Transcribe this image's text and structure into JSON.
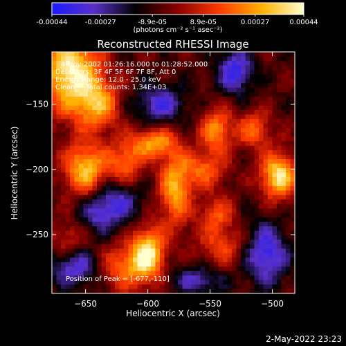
{
  "chart_data": {
    "type": "heatmap",
    "title": "Reconstructed RHESSI Image",
    "colorbar": {
      "ticks": [
        "-0.00044",
        "-0.00027",
        "-8.9e-05",
        "8.9e-05",
        "0.00027",
        "0.00044"
      ],
      "unit_label": "(photons cm⁻² s⁻¹ asec⁻²)",
      "range": [
        -0.00044,
        0.00044
      ],
      "colors": [
        "#1a1aff",
        "#5a30c8",
        "#000000",
        "#8a0000",
        "#ff3c00",
        "#ffb000",
        "#ffffd0"
      ]
    },
    "annotations": [
      "4-Nov-2002 01:26:16.000 to 01:28:52.000",
      "Detectors: 3F 4F 5F 6F 7F 8F, Att 0",
      "Energy Range: 12.0 - 25.0 keV",
      "Clean     Total counts: 1.34E+03"
    ],
    "peak_label": "Position of Peak = [-677,-110]",
    "xlabel": "Heliocentric X (arcsec)",
    "ylabel": "Heliocentric Y (arcsec)",
    "xlim": [
      -677,
      -482
    ],
    "ylim": [
      -295,
      -110
    ],
    "xticks": [
      -650,
      -600,
      -550,
      -500
    ],
    "yticks": [
      -150,
      -200,
      -250
    ],
    "grid": false,
    "hotspots": [
      {
        "x": -662,
        "y": -125,
        "amp": 1.1,
        "sx": 16,
        "sy": 22
      },
      {
        "x": -640,
        "y": -150,
        "amp": 0.7,
        "sx": 12,
        "sy": 14
      },
      {
        "x": -650,
        "y": -200,
        "amp": 0.9,
        "sx": 12,
        "sy": 14
      },
      {
        "x": -618,
        "y": -195,
        "amp": 0.6,
        "sx": 10,
        "sy": 12
      },
      {
        "x": -595,
        "y": -180,
        "amp": 0.75,
        "sx": 12,
        "sy": 8
      },
      {
        "x": -578,
        "y": -215,
        "amp": 0.8,
        "sx": 9,
        "sy": 20
      },
      {
        "x": -555,
        "y": -200,
        "amp": 0.55,
        "sx": 12,
        "sy": 10
      },
      {
        "x": -545,
        "y": -170,
        "amp": 0.7,
        "sx": 9,
        "sy": 12
      },
      {
        "x": -515,
        "y": -170,
        "amp": 0.55,
        "sx": 10,
        "sy": 10
      },
      {
        "x": -495,
        "y": -205,
        "amp": 1.05,
        "sx": 10,
        "sy": 12
      },
      {
        "x": -620,
        "y": -275,
        "amp": 0.6,
        "sx": 12,
        "sy": 12
      },
      {
        "x": -600,
        "y": -265,
        "amp": 1.1,
        "sx": 9,
        "sy": 14
      },
      {
        "x": -545,
        "y": -235,
        "amp": 0.5,
        "sx": 10,
        "sy": 10
      },
      {
        "x": -540,
        "y": -260,
        "amp": 0.45,
        "sx": 14,
        "sy": 10
      },
      {
        "x": -665,
        "y": -255,
        "amp": 0.35,
        "sx": 10,
        "sy": 10
      },
      {
        "x": -625,
        "y": -225,
        "amp": -0.55,
        "sx": 14,
        "sy": 12
      },
      {
        "x": -530,
        "y": -125,
        "amp": -0.7,
        "sx": 10,
        "sy": 12
      },
      {
        "x": -590,
        "y": -150,
        "amp": -0.6,
        "sx": 14,
        "sy": 10
      },
      {
        "x": -505,
        "y": -265,
        "amp": -0.75,
        "sx": 12,
        "sy": 16
      },
      {
        "x": -660,
        "y": -275,
        "amp": -0.6,
        "sx": 14,
        "sy": 10
      },
      {
        "x": -560,
        "y": -285,
        "amp": -0.5,
        "sx": 14,
        "sy": 8
      },
      {
        "x": -640,
        "y": -235,
        "amp": -0.4,
        "sx": 10,
        "sy": 10
      }
    ]
  },
  "footer": {
    "timestamp": "2-May-2022 23:23"
  }
}
